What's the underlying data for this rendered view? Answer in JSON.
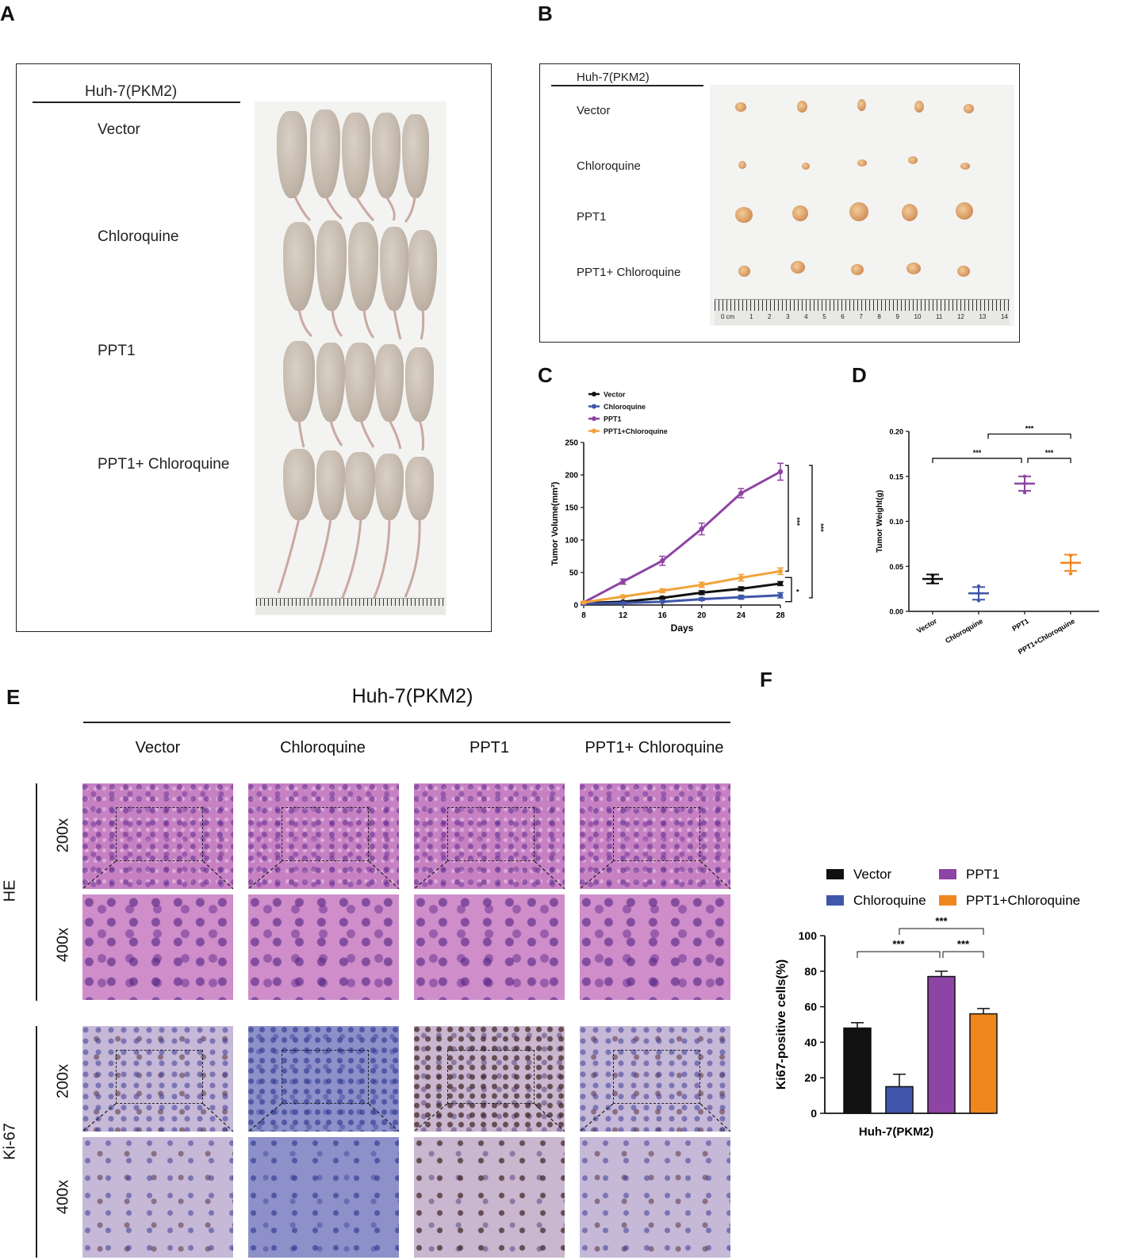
{
  "panels": {
    "a": "A",
    "b": "B",
    "c": "C",
    "d": "D",
    "e": "E",
    "f": "F"
  },
  "panel_a": {
    "header": "Huh-7(PKM2)",
    "rows": [
      "Vector",
      "Chloroquine",
      "PPT1",
      "PPT1+ Chloroquine"
    ]
  },
  "panel_b": {
    "header": "Huh-7(PKM2)",
    "rows": [
      "Vector",
      "Chloroquine",
      "PPT1",
      "PPT1+ Chloroquine"
    ],
    "ruler_labels": [
      "0 cm",
      "1",
      "2",
      "3",
      "4",
      "5",
      "6",
      "7",
      "8",
      "9",
      "10",
      "11",
      "12",
      "13",
      "14"
    ]
  },
  "panel_e": {
    "title": "Huh-7(PKM2)",
    "columns": [
      "Vector",
      "Chloroquine",
      "PPT1",
      "PPT1+ Chloroquine"
    ],
    "stains": [
      "HE",
      "Ki-67"
    ],
    "magnifications": [
      "200x",
      "400x"
    ]
  },
  "colors": {
    "vector": "#111111",
    "chloroquine": "#3f56ab",
    "ppt1": "#8e44a4",
    "ppt1_cq": "#f0861e",
    "line_cq": "#f2a33a"
  },
  "chart_data": [
    {
      "type": "line",
      "panel": "C",
      "xlabel": "Days",
      "ylabel": "Tumor Volume(mm³)",
      "x": [
        8,
        12,
        16,
        20,
        24,
        28
      ],
      "xticks": [
        "8",
        "12",
        "16",
        "20",
        "24",
        "28"
      ],
      "yticks": [
        "0",
        "50",
        "100",
        "150",
        "200",
        "250"
      ],
      "ylim": [
        0,
        250
      ],
      "series": [
        {
          "name": "Vector",
          "values": [
            3,
            5,
            11,
            19,
            25,
            33
          ],
          "err": [
            1,
            1,
            2,
            3,
            3,
            3
          ]
        },
        {
          "name": "Chloroquine",
          "values": [
            2,
            3,
            5,
            9,
            12,
            15
          ],
          "err": [
            1,
            1,
            1,
            2,
            3,
            4
          ]
        },
        {
          "name": "PPT1",
          "values": [
            4,
            36,
            68,
            117,
            172,
            205
          ],
          "err": [
            1,
            4,
            7,
            9,
            7,
            13
          ]
        },
        {
          "name": "PPT1+Chloroquine",
          "values": [
            4,
            13,
            22,
            31,
            42,
            52
          ],
          "err": [
            1,
            2,
            3,
            4,
            5,
            5
          ]
        }
      ],
      "significance": [
        "***",
        "***",
        "*"
      ]
    },
    {
      "type": "scatter",
      "panel": "D",
      "ylabel": "Tumor Weight(g)",
      "categories": [
        "Vector",
        "Chloroquine",
        "PPT1",
        "PPT1+Chloroquine"
      ],
      "yticks": [
        "0.00",
        "0.05",
        "0.10",
        "0.15",
        "0.20"
      ],
      "ylim": [
        0,
        0.2
      ],
      "means": [
        0.036,
        0.02,
        0.142,
        0.054
      ],
      "err": [
        0.005,
        0.007,
        0.008,
        0.009
      ],
      "points": [
        [
          0.032,
          0.036,
          0.04
        ],
        [
          0.012,
          0.02,
          0.028
        ],
        [
          0.132,
          0.142,
          0.15
        ],
        [
          0.042,
          0.054,
          0.062
        ]
      ],
      "significance": [
        "***",
        "***",
        "***"
      ]
    },
    {
      "type": "bar",
      "panel": "F",
      "xlabel": "Huh-7(PKM2)",
      "ylabel": "Ki67-positive cells(%)",
      "categories": [
        "Vector",
        "Chloroquine",
        "PPT1",
        "PPT1+Chloroquine"
      ],
      "values": [
        48,
        15,
        77,
        56
      ],
      "err": [
        3,
        7,
        3,
        3
      ],
      "yticks": [
        "0",
        "20",
        "40",
        "60",
        "80",
        "100"
      ],
      "ylim": [
        0,
        100
      ],
      "significance": [
        "***",
        "***",
        "***"
      ]
    }
  ]
}
